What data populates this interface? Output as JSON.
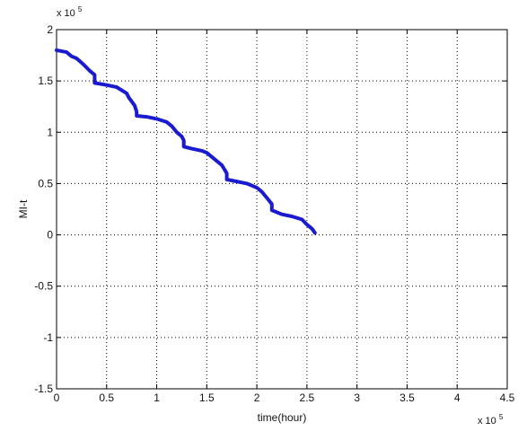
{
  "chart_data": {
    "type": "line",
    "xlabel": "time(hour)",
    "ylabel": "MI-t",
    "x_multiplier": "x 10",
    "x_multiplier_exp": "5",
    "y_multiplier": "x 10",
    "y_multiplier_exp": "5",
    "xlim": [
      0,
      4.5
    ],
    "ylim": [
      -1.5,
      2
    ],
    "x_ticks": [
      0,
      0.5,
      1,
      1.5,
      2,
      2.5,
      3,
      3.5,
      4,
      4.5
    ],
    "x_tick_labels": [
      "0",
      "0.5",
      "1",
      "1.5",
      "2",
      "2.5",
      "3",
      "3.5",
      "4",
      "4.5"
    ],
    "y_ticks": [
      -1.5,
      -1,
      -0.5,
      0,
      0.5,
      1,
      1.5,
      2
    ],
    "y_tick_labels": [
      "-1.5",
      "-1",
      "-0.5",
      "0",
      "0.5",
      "1",
      "1.5",
      "2"
    ],
    "grid": true,
    "series": [
      {
        "color": "#1a1ad0",
        "x": [
          0,
          0.1,
          0.15,
          0.2,
          0.27,
          0.33,
          0.38,
          0.38,
          0.5,
          0.6,
          0.7,
          0.72,
          0.75,
          0.78,
          0.8,
          0.8,
          0.9,
          1.0,
          1.1,
          1.15,
          1.2,
          1.25,
          1.27,
          1.27,
          1.35,
          1.45,
          1.5,
          1.55,
          1.6,
          1.65,
          1.7,
          1.7,
          1.8,
          1.9,
          1.95,
          2.0,
          2.05,
          2.1,
          2.15,
          2.15,
          2.25,
          2.35,
          2.45,
          2.5,
          2.55,
          2.58
        ],
        "y": [
          1.8,
          1.78,
          1.74,
          1.72,
          1.66,
          1.6,
          1.56,
          1.48,
          1.46,
          1.44,
          1.38,
          1.34,
          1.3,
          1.26,
          1.2,
          1.16,
          1.15,
          1.13,
          1.1,
          1.06,
          1.0,
          0.96,
          0.92,
          0.86,
          0.84,
          0.82,
          0.8,
          0.76,
          0.72,
          0.68,
          0.6,
          0.54,
          0.52,
          0.5,
          0.48,
          0.46,
          0.42,
          0.36,
          0.3,
          0.24,
          0.2,
          0.18,
          0.15,
          0.1,
          0.06,
          0.02
        ]
      }
    ]
  }
}
